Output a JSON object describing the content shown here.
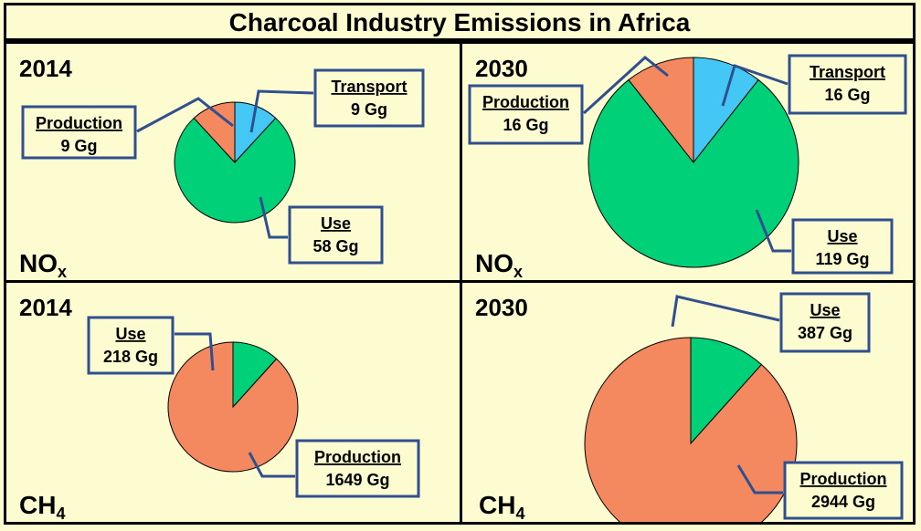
{
  "title": "Charcoal Industry Emissions in Africa",
  "colors": {
    "background": "#fdfbd0",
    "Production": "#f4895f",
    "Use": "#00d179",
    "Transport": "#45c7f5",
    "callout": "#2f4f8f"
  },
  "chart_data": [
    {
      "type": "pie",
      "year": "2014",
      "gas": "NO",
      "gas_sub": "x",
      "slices": [
        {
          "label": "Transport",
          "value": 9,
          "value_text": "9 Gg"
        },
        {
          "label": "Use",
          "value": 58,
          "value_text": "58 Gg"
        },
        {
          "label": "Production",
          "value": 9,
          "value_text": "9 Gg"
        }
      ]
    },
    {
      "type": "pie",
      "year": "2030",
      "gas": "NO",
      "gas_sub": "x",
      "slices": [
        {
          "label": "Transport",
          "value": 16,
          "value_text": "16 Gg"
        },
        {
          "label": "Use",
          "value": 119,
          "value_text": "119 Gg"
        },
        {
          "label": "Production",
          "value": 16,
          "value_text": "16 Gg"
        }
      ]
    },
    {
      "type": "pie",
      "year": "2014",
      "gas": "CH",
      "gas_sub": "4",
      "slices": [
        {
          "label": "Production",
          "value": 1649,
          "value_text": "1649 Gg"
        },
        {
          "label": "Use",
          "value": 218,
          "value_text": "218 Gg"
        }
      ]
    },
    {
      "type": "pie",
      "year": "2030",
      "gas": "CH",
      "gas_sub": "4",
      "slices": [
        {
          "label": "Production",
          "value": 2944,
          "value_text": "2944 Gg"
        },
        {
          "label": "Use",
          "value": 387,
          "value_text": "387 Gg"
        }
      ]
    }
  ]
}
